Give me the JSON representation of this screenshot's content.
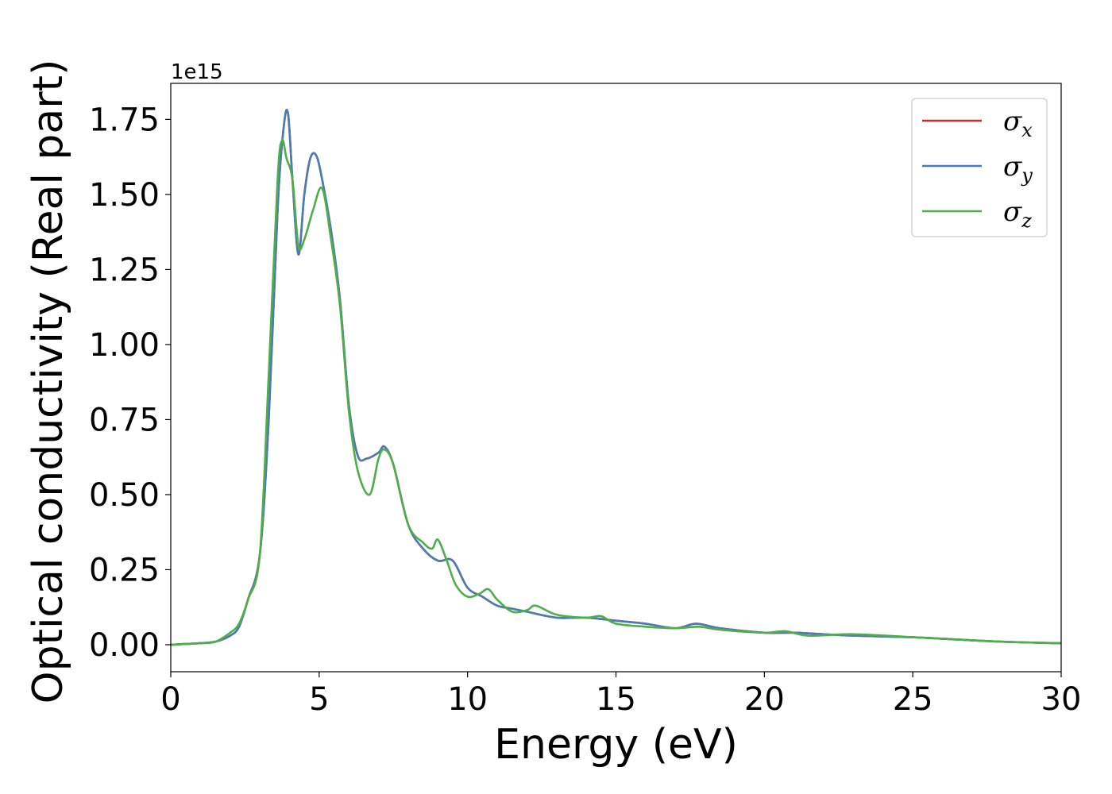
{
  "chart_data": {
    "type": "line",
    "title": "",
    "xlabel": "Energy (eV)",
    "ylabel": "Optical conductivity (Real part)",
    "y_offset_label": "1e15",
    "xlim": [
      0,
      30
    ],
    "ylim": [
      -0.09,
      1.87
    ],
    "xticks": [
      0,
      5,
      10,
      15,
      20,
      25,
      30
    ],
    "xtick_labels": [
      "0",
      "5",
      "10",
      "15",
      "20",
      "25",
      "30"
    ],
    "yticks": [
      0.0,
      0.25,
      0.5,
      0.75,
      1.0,
      1.25,
      1.5,
      1.75
    ],
    "ytick_labels": [
      "0.00",
      "0.25",
      "0.50",
      "0.75",
      "1.00",
      "1.25",
      "1.50",
      "1.75"
    ],
    "grid": false,
    "legend_position": "upper right",
    "series": [
      {
        "name": "σx",
        "symbol": "σ",
        "subscript": "x",
        "color": "#d62728",
        "x": [
          0,
          1,
          1.5,
          2,
          2.3,
          2.6,
          3,
          3.3,
          3.6,
          3.8,
          3.95,
          4.1,
          4.3,
          4.5,
          4.7,
          4.9,
          5.1,
          5.4,
          5.7,
          6,
          6.3,
          6.6,
          7,
          7.2,
          7.5,
          8,
          8.5,
          9,
          9.5,
          10,
          10.5,
          11,
          11.5,
          12,
          13,
          14,
          15,
          16,
          17,
          17.7,
          18.5,
          20,
          21,
          22,
          23,
          25,
          26,
          28,
          30
        ],
        "y": [
          0.0,
          0.005,
          0.01,
          0.03,
          0.06,
          0.15,
          0.3,
          0.75,
          1.45,
          1.72,
          1.77,
          1.55,
          1.3,
          1.5,
          1.62,
          1.63,
          1.55,
          1.38,
          1.15,
          0.8,
          0.63,
          0.62,
          0.64,
          0.66,
          0.6,
          0.4,
          0.32,
          0.28,
          0.28,
          0.19,
          0.16,
          0.13,
          0.12,
          0.11,
          0.09,
          0.09,
          0.08,
          0.07,
          0.055,
          0.07,
          0.055,
          0.04,
          0.04,
          0.035,
          0.03,
          0.025,
          0.02,
          0.01,
          0.005
        ]
      },
      {
        "name": "σy",
        "symbol": "σ",
        "subscript": "y",
        "color": "#4a7db5",
        "x": [
          0,
          1,
          1.5,
          2,
          2.3,
          2.6,
          3,
          3.3,
          3.6,
          3.8,
          3.95,
          4.1,
          4.3,
          4.5,
          4.7,
          4.9,
          5.1,
          5.4,
          5.7,
          6,
          6.3,
          6.6,
          7,
          7.2,
          7.5,
          8,
          8.5,
          9,
          9.5,
          10,
          10.5,
          11,
          11.5,
          12,
          13,
          14,
          15,
          16,
          17,
          17.7,
          18.5,
          20,
          21,
          22,
          23,
          25,
          26,
          28,
          30
        ],
        "y": [
          0.0,
          0.005,
          0.01,
          0.03,
          0.06,
          0.15,
          0.3,
          0.75,
          1.45,
          1.72,
          1.77,
          1.55,
          1.3,
          1.5,
          1.62,
          1.63,
          1.55,
          1.38,
          1.15,
          0.8,
          0.63,
          0.62,
          0.64,
          0.66,
          0.6,
          0.4,
          0.32,
          0.28,
          0.28,
          0.19,
          0.16,
          0.13,
          0.12,
          0.11,
          0.09,
          0.09,
          0.08,
          0.07,
          0.055,
          0.07,
          0.055,
          0.04,
          0.04,
          0.035,
          0.03,
          0.025,
          0.02,
          0.01,
          0.005
        ]
      },
      {
        "name": "σz",
        "symbol": "σ",
        "subscript": "z",
        "color": "#4daf4a",
        "x": [
          0,
          1,
          1.5,
          2,
          2.3,
          2.6,
          3,
          3.3,
          3.6,
          3.75,
          3.9,
          4.1,
          4.3,
          4.5,
          4.8,
          5.1,
          5.4,
          5.7,
          6,
          6.3,
          6.7,
          7,
          7.2,
          7.5,
          8,
          8.5,
          8.8,
          9,
          9.3,
          9.6,
          10,
          10.4,
          10.7,
          11,
          11.5,
          12,
          12.3,
          13,
          14,
          14.5,
          15,
          16,
          17,
          17.8,
          18.5,
          20,
          20.7,
          21.5,
          23,
          25,
          26,
          28,
          30
        ],
        "y": [
          0.0,
          0.005,
          0.01,
          0.04,
          0.07,
          0.15,
          0.3,
          0.9,
          1.55,
          1.68,
          1.62,
          1.55,
          1.33,
          1.35,
          1.45,
          1.52,
          1.35,
          1.13,
          0.78,
          0.58,
          0.5,
          0.62,
          0.65,
          0.6,
          0.4,
          0.34,
          0.32,
          0.35,
          0.28,
          0.2,
          0.16,
          0.17,
          0.185,
          0.15,
          0.11,
          0.115,
          0.13,
          0.1,
          0.09,
          0.095,
          0.07,
          0.06,
          0.055,
          0.06,
          0.05,
          0.04,
          0.045,
          0.03,
          0.035,
          0.025,
          0.02,
          0.01,
          0.005
        ]
      }
    ]
  }
}
